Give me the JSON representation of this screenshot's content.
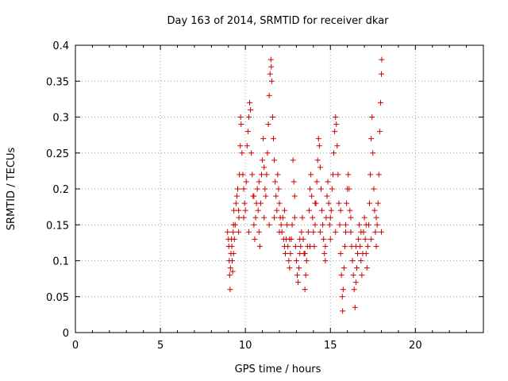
{
  "chart_data": {
    "type": "scatter",
    "title": "Day 163 of 2014, SRMTID for receiver dkar",
    "xlabel": "GPS time / hours",
    "ylabel": "SRMTID / TECUs",
    "xlim": [
      0,
      24
    ],
    "ylim": [
      0,
      0.4
    ],
    "grid": true,
    "marker": "+",
    "color": "#cc0000",
    "x_ticks": [
      0,
      5,
      10,
      15,
      20
    ],
    "x_tick_labels": [
      "0",
      "5",
      "10",
      "15",
      "20"
    ],
    "y_ticks": [
      0,
      0.05,
      0.1,
      0.15,
      0.2,
      0.25,
      0.3,
      0.35,
      0.4
    ],
    "y_tick_labels": [
      "0",
      "0.05",
      "0.1",
      "0.15",
      "0.2",
      "0.25",
      "0.3",
      "0.35",
      "0.4"
    ],
    "series": [
      {
        "name": "SRMTID",
        "points": [
          [
            8.95,
            0.14
          ],
          [
            9.0,
            0.13
          ],
          [
            9.02,
            0.12
          ],
          [
            9.05,
            0.1
          ],
          [
            9.07,
            0.08
          ],
          [
            9.1,
            0.06
          ],
          [
            9.12,
            0.09
          ],
          [
            9.15,
            0.11
          ],
          [
            9.18,
            0.13
          ],
          [
            9.2,
            0.12
          ],
          [
            9.22,
            0.1
          ],
          [
            9.25,
            0.085
          ],
          [
            9.28,
            0.14
          ],
          [
            9.3,
            0.15
          ],
          [
            9.32,
            0.17
          ],
          [
            9.35,
            0.13
          ],
          [
            9.4,
            0.15
          ],
          [
            9.45,
            0.18
          ],
          [
            9.5,
            0.19
          ],
          [
            9.55,
            0.2
          ],
          [
            9.6,
            0.17
          ],
          [
            9.62,
            0.16
          ],
          [
            9.65,
            0.22
          ],
          [
            9.7,
            0.26
          ],
          [
            9.72,
            0.3
          ],
          [
            9.75,
            0.29
          ],
          [
            9.8,
            0.25
          ],
          [
            9.85,
            0.22
          ],
          [
            9.9,
            0.2
          ],
          [
            9.95,
            0.18
          ],
          [
            10.0,
            0.17
          ],
          [
            10.05,
            0.21
          ],
          [
            10.1,
            0.26
          ],
          [
            10.15,
            0.28
          ],
          [
            10.2,
            0.3
          ],
          [
            10.25,
            0.32
          ],
          [
            10.3,
            0.31
          ],
          [
            10.35,
            0.25
          ],
          [
            10.4,
            0.22
          ],
          [
            10.45,
            0.19
          ],
          [
            10.5,
            0.15
          ],
          [
            10.55,
            0.13
          ],
          [
            10.6,
            0.16
          ],
          [
            10.65,
            0.18
          ],
          [
            10.7,
            0.2
          ],
          [
            10.75,
            0.17
          ],
          [
            10.8,
            0.14
          ],
          [
            10.85,
            0.12
          ],
          [
            10.9,
            0.18
          ],
          [
            10.95,
            0.22
          ],
          [
            11.0,
            0.24
          ],
          [
            11.05,
            0.27
          ],
          [
            11.1,
            0.23
          ],
          [
            11.15,
            0.2
          ],
          [
            11.2,
            0.19
          ],
          [
            11.25,
            0.22
          ],
          [
            11.3,
            0.25
          ],
          [
            11.35,
            0.29
          ],
          [
            11.4,
            0.33
          ],
          [
            11.45,
            0.36
          ],
          [
            11.5,
            0.38
          ],
          [
            11.52,
            0.37
          ],
          [
            11.55,
            0.35
          ],
          [
            11.6,
            0.3
          ],
          [
            11.65,
            0.27
          ],
          [
            11.7,
            0.24
          ],
          [
            11.75,
            0.21
          ],
          [
            11.8,
            0.19
          ],
          [
            11.85,
            0.17
          ],
          [
            11.9,
            0.22
          ],
          [
            11.95,
            0.2
          ],
          [
            12.0,
            0.18
          ],
          [
            12.05,
            0.16
          ],
          [
            12.1,
            0.15
          ],
          [
            12.15,
            0.14
          ],
          [
            12.2,
            0.16
          ],
          [
            12.25,
            0.13
          ],
          [
            12.3,
            0.12
          ],
          [
            12.35,
            0.11
          ],
          [
            12.4,
            0.13
          ],
          [
            12.45,
            0.15
          ],
          [
            12.5,
            0.12
          ],
          [
            12.55,
            0.1
          ],
          [
            12.6,
            0.09
          ],
          [
            12.65,
            0.11
          ],
          [
            12.7,
            0.13
          ],
          [
            12.75,
            0.15
          ],
          [
            12.8,
            0.24
          ],
          [
            12.85,
            0.21
          ],
          [
            12.9,
            0.19
          ],
          [
            12.95,
            0.12
          ],
          [
            13.0,
            0.1
          ],
          [
            13.05,
            0.08
          ],
          [
            13.1,
            0.07
          ],
          [
            13.15,
            0.09
          ],
          [
            13.2,
            0.11
          ],
          [
            13.25,
            0.12
          ],
          [
            13.3,
            0.14
          ],
          [
            13.35,
            0.16
          ],
          [
            13.4,
            0.13
          ],
          [
            13.45,
            0.11
          ],
          [
            13.5,
            0.06
          ],
          [
            13.55,
            0.08
          ],
          [
            13.6,
            0.1
          ],
          [
            13.65,
            0.12
          ],
          [
            13.7,
            0.14
          ],
          [
            13.75,
            0.17
          ],
          [
            13.8,
            0.2
          ],
          [
            13.85,
            0.22
          ],
          [
            13.9,
            0.19
          ],
          [
            13.95,
            0.16
          ],
          [
            14.0,
            0.14
          ],
          [
            14.05,
            0.12
          ],
          [
            14.1,
            0.15
          ],
          [
            14.15,
            0.18
          ],
          [
            14.2,
            0.21
          ],
          [
            14.25,
            0.24
          ],
          [
            14.3,
            0.27
          ],
          [
            14.35,
            0.26
          ],
          [
            14.4,
            0.23
          ],
          [
            14.45,
            0.2
          ],
          [
            14.5,
            0.17
          ],
          [
            14.55,
            0.15
          ],
          [
            14.6,
            0.13
          ],
          [
            14.65,
            0.11
          ],
          [
            14.7,
            0.1
          ],
          [
            14.75,
            0.16
          ],
          [
            14.8,
            0.19
          ],
          [
            14.85,
            0.21
          ],
          [
            14.9,
            0.18
          ],
          [
            14.95,
            0.15
          ],
          [
            15.0,
            0.13
          ],
          [
            15.05,
            0.17
          ],
          [
            15.1,
            0.2
          ],
          [
            15.15,
            0.22
          ],
          [
            15.2,
            0.25
          ],
          [
            15.25,
            0.28
          ],
          [
            15.3,
            0.3
          ],
          [
            15.35,
            0.29
          ],
          [
            15.4,
            0.26
          ],
          [
            15.45,
            0.22
          ],
          [
            15.5,
            0.18
          ],
          [
            15.55,
            0.15
          ],
          [
            15.6,
            0.11
          ],
          [
            15.65,
            0.08
          ],
          [
            15.7,
            0.05
          ],
          [
            15.72,
            0.03
          ],
          [
            15.75,
            0.06
          ],
          [
            15.8,
            0.09
          ],
          [
            15.85,
            0.12
          ],
          [
            15.9,
            0.15
          ],
          [
            15.95,
            0.18
          ],
          [
            16.0,
            0.2
          ],
          [
            16.05,
            0.22
          ],
          [
            16.1,
            0.2
          ],
          [
            16.15,
            0.17
          ],
          [
            16.2,
            0.14
          ],
          [
            16.25,
            0.12
          ],
          [
            16.3,
            0.1
          ],
          [
            16.35,
            0.08
          ],
          [
            16.4,
            0.06
          ],
          [
            16.45,
            0.035
          ],
          [
            16.5,
            0.07
          ],
          [
            16.55,
            0.09
          ],
          [
            16.6,
            0.11
          ],
          [
            16.65,
            0.13
          ],
          [
            16.7,
            0.15
          ],
          [
            16.75,
            0.12
          ],
          [
            16.8,
            0.1
          ],
          [
            16.85,
            0.08
          ],
          [
            16.9,
            0.11
          ],
          [
            16.95,
            0.14
          ],
          [
            17.0,
            0.16
          ],
          [
            17.05,
            0.13
          ],
          [
            17.1,
            0.11
          ],
          [
            17.15,
            0.09
          ],
          [
            17.2,
            0.12
          ],
          [
            17.25,
            0.15
          ],
          [
            17.3,
            0.18
          ],
          [
            17.35,
            0.22
          ],
          [
            17.4,
            0.27
          ],
          [
            17.45,
            0.3
          ],
          [
            17.5,
            0.25
          ],
          [
            17.55,
            0.2
          ],
          [
            17.6,
            0.17
          ],
          [
            17.65,
            0.14
          ],
          [
            17.7,
            0.12
          ],
          [
            17.75,
            0.15
          ],
          [
            17.8,
            0.18
          ],
          [
            17.85,
            0.22
          ],
          [
            17.9,
            0.28
          ],
          [
            17.95,
            0.32
          ],
          [
            18.0,
            0.36
          ],
          [
            18.02,
            0.38
          ],
          [
            9.3,
            0.11
          ],
          [
            9.6,
            0.14
          ],
          [
            9.9,
            0.16
          ],
          [
            10.2,
            0.14
          ],
          [
            10.5,
            0.19
          ],
          [
            10.8,
            0.21
          ],
          [
            11.1,
            0.16
          ],
          [
            11.4,
            0.15
          ],
          [
            11.7,
            0.16
          ],
          [
            12.0,
            0.14
          ],
          [
            12.3,
            0.17
          ],
          [
            12.6,
            0.13
          ],
          [
            12.9,
            0.16
          ],
          [
            13.2,
            0.13
          ],
          [
            13.5,
            0.11
          ],
          [
            13.8,
            0.12
          ],
          [
            14.1,
            0.18
          ],
          [
            14.4,
            0.14
          ],
          [
            14.7,
            0.12
          ],
          [
            15.0,
            0.16
          ],
          [
            15.3,
            0.14
          ],
          [
            15.6,
            0.17
          ],
          [
            15.9,
            0.14
          ],
          [
            16.2,
            0.16
          ],
          [
            16.5,
            0.12
          ],
          [
            16.8,
            0.14
          ],
          [
            17.1,
            0.15
          ],
          [
            17.4,
            0.13
          ],
          [
            17.7,
            0.16
          ],
          [
            18.0,
            0.14
          ]
        ]
      }
    ]
  }
}
